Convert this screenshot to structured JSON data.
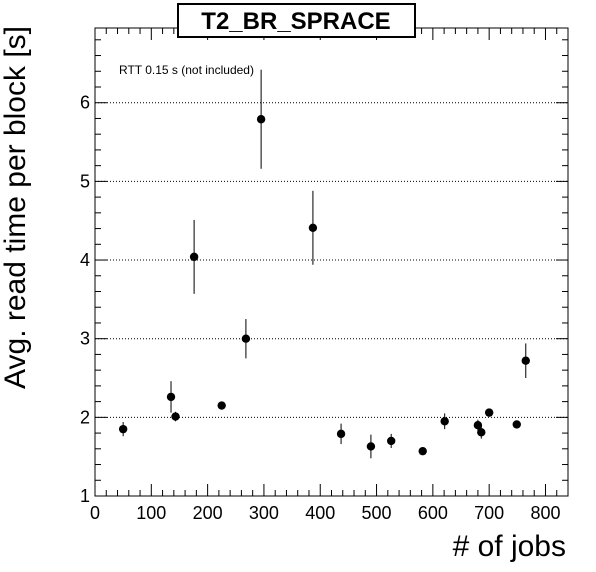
{
  "chart_data": {
    "type": "scatter",
    "title": "T2_BR_SPRACE",
    "xlabel": "# of jobs",
    "ylabel": "Avg. read time per block [s]",
    "annotation": "RTT 0.15 s (not included)",
    "xlim": [
      0,
      840
    ],
    "ylim": [
      1,
      6.95
    ],
    "x_ticks": [
      0,
      100,
      200,
      300,
      400,
      500,
      600,
      700,
      800
    ],
    "y_ticks": [
      1,
      2,
      3,
      4,
      5,
      6
    ],
    "grid": "horizontal dotted",
    "points": [
      {
        "x": 50,
        "y": 1.85,
        "err": 0.09
      },
      {
        "x": 135,
        "y": 2.26,
        "err": 0.2
      },
      {
        "x": 143,
        "y": 2.01,
        "err": 0.06
      },
      {
        "x": 176,
        "y": 4.04,
        "err": 0.47
      },
      {
        "x": 225,
        "y": 2.15,
        "err": 0.04
      },
      {
        "x": 268,
        "y": 3.0,
        "err": 0.25
      },
      {
        "x": 295,
        "y": 5.79,
        "err": 0.63
      },
      {
        "x": 387,
        "y": 4.41,
        "err": 0.47
      },
      {
        "x": 437,
        "y": 1.79,
        "err": 0.13
      },
      {
        "x": 490,
        "y": 1.63,
        "err": 0.15
      },
      {
        "x": 526,
        "y": 1.7,
        "err": 0.09
      },
      {
        "x": 582,
        "y": 1.57,
        "err": 0.03
      },
      {
        "x": 621,
        "y": 1.95,
        "err": 0.1
      },
      {
        "x": 680,
        "y": 1.9,
        "err": 0.07
      },
      {
        "x": 686,
        "y": 1.81,
        "err": 0.08
      },
      {
        "x": 700,
        "y": 2.06,
        "err": 0.04
      },
      {
        "x": 749,
        "y": 1.91,
        "err": 0.04
      },
      {
        "x": 765,
        "y": 2.72,
        "err": 0.22
      }
    ]
  }
}
